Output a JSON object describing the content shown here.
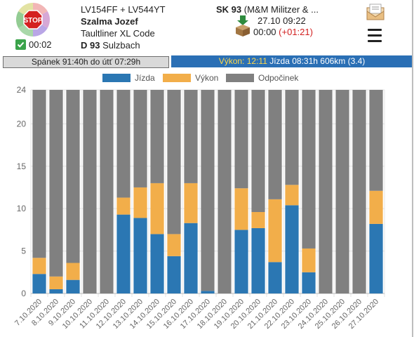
{
  "header": {
    "check_time": "00:02",
    "vehicle": "LV154FF + LV544YT",
    "driver": "Szalma Jozef",
    "trailer": "Taultliner XL Code",
    "depot_code": "D 93",
    "depot_name": "Sulzbach",
    "route_code": "SK 93",
    "route_name": "(M&M Militzer & ...",
    "route_date": "27.10 09:22",
    "route_time": "00:00",
    "route_delta": "(+01:21)"
  },
  "status": {
    "sleep": "Spánek 91:40h do útť 07:29h",
    "vykon_label": "Výkon: 12:11",
    "jizda": "Jízda 08:31h 606km (3.4)"
  },
  "colors": {
    "jizda": "#2b77b3",
    "vykon": "#f2ae4a",
    "odpocinek": "#808080"
  },
  "chart_data": {
    "type": "bar",
    "stacked": true,
    "categories": [
      "7.10.2020",
      "8.10.2020",
      "9.10.2020",
      "10.10.2020",
      "11.10.2020",
      "12.10.2020",
      "13.10.2020",
      "14.10.2020",
      "15.10.2020",
      "16.10.2020",
      "17.10.2020",
      "18.10.2020",
      "19.10.2020",
      "20.10.2020",
      "21.10.2020",
      "22.10.2020",
      "23.10.2020",
      "24.10.2020",
      "25.10.2020",
      "26.10.2020",
      "27.10.2020"
    ],
    "series": [
      {
        "name": "Jízda",
        "values": [
          2.3,
          0.5,
          1.6,
          0,
          0,
          9.3,
          8.9,
          7.0,
          4.4,
          8.3,
          0.3,
          0,
          7.5,
          7.7,
          3.7,
          10.4,
          2.5,
          0,
          0,
          0,
          8.2
        ]
      },
      {
        "name": "Výkon",
        "values": [
          1.9,
          1.5,
          2.0,
          0,
          0,
          2.0,
          3.6,
          6.0,
          2.6,
          4.7,
          0,
          0,
          4.9,
          1.9,
          7.4,
          2.4,
          2.8,
          0,
          0,
          0,
          3.9
        ]
      },
      {
        "name": "Odpočinek",
        "values": [
          19.8,
          22.0,
          20.4,
          24,
          24,
          12.7,
          11.5,
          11.0,
          17.0,
          11.0,
          23.7,
          24,
          11.6,
          14.4,
          12.9,
          11.2,
          18.7,
          24,
          24,
          24,
          11.9
        ]
      }
    ],
    "ylim": [
      0,
      24
    ],
    "yticks": [
      "0",
      "5",
      "10",
      "15",
      "20",
      "24"
    ],
    "ytick_values": [
      0,
      5,
      10,
      15,
      20,
      24
    ],
    "legend_position": "top",
    "grid": true
  }
}
